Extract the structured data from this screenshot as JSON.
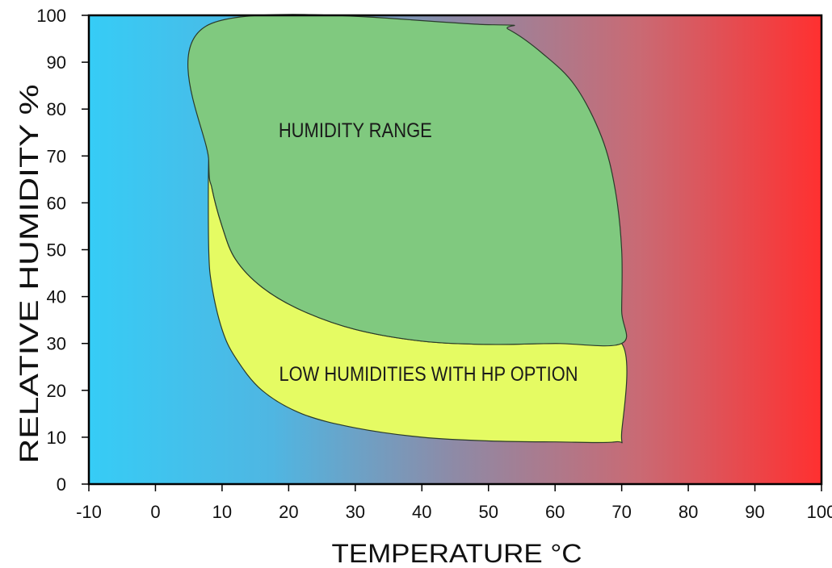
{
  "chart_data": {
    "type": "area",
    "xlabel": "TEMPERATURE °C",
    "ylabel": "RELATIVE HUMIDITY %",
    "xlim": [
      -10,
      100
    ],
    "ylim": [
      0,
      100
    ],
    "xticks": [
      -10,
      0,
      10,
      20,
      30,
      40,
      50,
      60,
      70,
      80,
      90,
      100
    ],
    "yticks": [
      0,
      10,
      20,
      30,
      40,
      50,
      60,
      70,
      80,
      90,
      100
    ],
    "background_gradient": [
      "#36ccf6",
      "#4fb6e2",
      "#8e8aa6",
      "#c96a74",
      "#ff3030"
    ],
    "regions": [
      {
        "name": "HUMIDITY RANGE",
        "color": "#80c97f",
        "label_at": [
          30,
          74
        ],
        "points": [
          [
            8,
            98
          ],
          [
            50,
            98
          ],
          [
            53,
            97
          ],
          [
            58,
            92
          ],
          [
            63,
            85
          ],
          [
            67,
            74
          ],
          [
            69,
            63
          ],
          [
            70,
            50
          ],
          [
            70,
            37
          ],
          [
            70,
            30
          ],
          [
            60,
            30
          ],
          [
            50,
            29.8
          ],
          [
            40,
            30.5
          ],
          [
            30,
            33
          ],
          [
            22,
            37
          ],
          [
            16,
            42
          ],
          [
            12,
            48
          ],
          [
            10,
            55
          ],
          [
            8.5,
            63
          ],
          [
            8,
            69
          ]
        ]
      },
      {
        "name": "LOW HUMIDITIES WITH HP OPTION",
        "color": "#e5fb63",
        "label_at": [
          41,
          22
        ],
        "points": [
          [
            8,
            69
          ],
          [
            8.5,
            63
          ],
          [
            10,
            55
          ],
          [
            12,
            48
          ],
          [
            16,
            42
          ],
          [
            22,
            37
          ],
          [
            30,
            33
          ],
          [
            40,
            30.5
          ],
          [
            50,
            29.8
          ],
          [
            60,
            30
          ],
          [
            70,
            30
          ],
          [
            70,
            11
          ],
          [
            69,
            9
          ],
          [
            60,
            9
          ],
          [
            50,
            9.2
          ],
          [
            40,
            10
          ],
          [
            30,
            12
          ],
          [
            22,
            15
          ],
          [
            16,
            20
          ],
          [
            12,
            27
          ],
          [
            10,
            33
          ],
          [
            8.5,
            42
          ],
          [
            8,
            50
          ]
        ]
      }
    ]
  }
}
